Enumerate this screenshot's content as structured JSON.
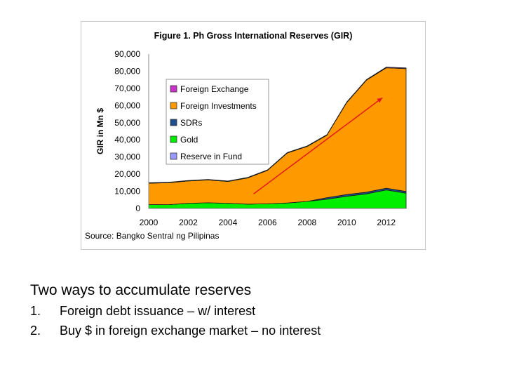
{
  "chart_data": {
    "type": "area",
    "title": "Figure 1. Ph Gross International Reserves (GIR)",
    "ylabel": "GIR in Mn $",
    "xlabel": "",
    "source": "Source: Bangko Sentral ng Pilipinas",
    "x": [
      2000,
      2001,
      2002,
      2003,
      2004,
      2005,
      2006,
      2007,
      2008,
      2009,
      2010,
      2011,
      2012,
      2013
    ],
    "x_ticks": [
      "2000",
      "2002",
      "2004",
      "2006",
      "2008",
      "2010",
      "2012"
    ],
    "y_ticks": [
      "0",
      "10,000",
      "20,000",
      "30,000",
      "40,000",
      "50,000",
      "60,000",
      "70,000",
      "80,000",
      "90,000"
    ],
    "ylim": [
      0,
      90000
    ],
    "xlim": [
      2000,
      2013
    ],
    "stacked": true,
    "series": [
      {
        "name": "Reserve in Fund",
        "color": "#9999ff",
        "values": [
          100,
          100,
          100,
          100,
          100,
          100,
          100,
          100,
          100,
          100,
          100,
          100,
          100,
          100
        ]
      },
      {
        "name": "Gold",
        "color": "#00ee00",
        "values": [
          2200,
          2100,
          2900,
          3200,
          2900,
          2400,
          2600,
          3100,
          4000,
          5300,
          7000,
          8400,
          10700,
          8800
        ]
      },
      {
        "name": "SDRs",
        "color": "#1f4e8c",
        "values": [
          0,
          0,
          0,
          0,
          0,
          0,
          0,
          0,
          0,
          900,
          1000,
          1000,
          1000,
          1000
        ]
      },
      {
        "name": "Foreign Investments",
        "color": "#ff9900",
        "values": [
          12400,
          12800,
          13000,
          13300,
          12700,
          15300,
          19500,
          29100,
          32000,
          36400,
          53600,
          65300,
          70200,
          71600
        ]
      },
      {
        "name": "Foreign Exchange",
        "color": "#cc33cc",
        "values": [
          300,
          300,
          300,
          300,
          300,
          300,
          300,
          300,
          300,
          300,
          300,
          300,
          400,
          400
        ]
      }
    ],
    "legend_position": "upper-left",
    "grid": false,
    "annotation": {
      "type": "arrow",
      "color": "#e31a1c",
      "from": [
        2005.3,
        8500
      ],
      "to": [
        2011.8,
        64500
      ]
    }
  },
  "slide": {
    "heading": "Two ways to accumulate reserves",
    "items": [
      {
        "num": "1.",
        "text": "Foreign debt issuance – w/ interest"
      },
      {
        "num": "2.",
        "text": "Buy $ in foreign exchange market – no interest"
      }
    ]
  }
}
